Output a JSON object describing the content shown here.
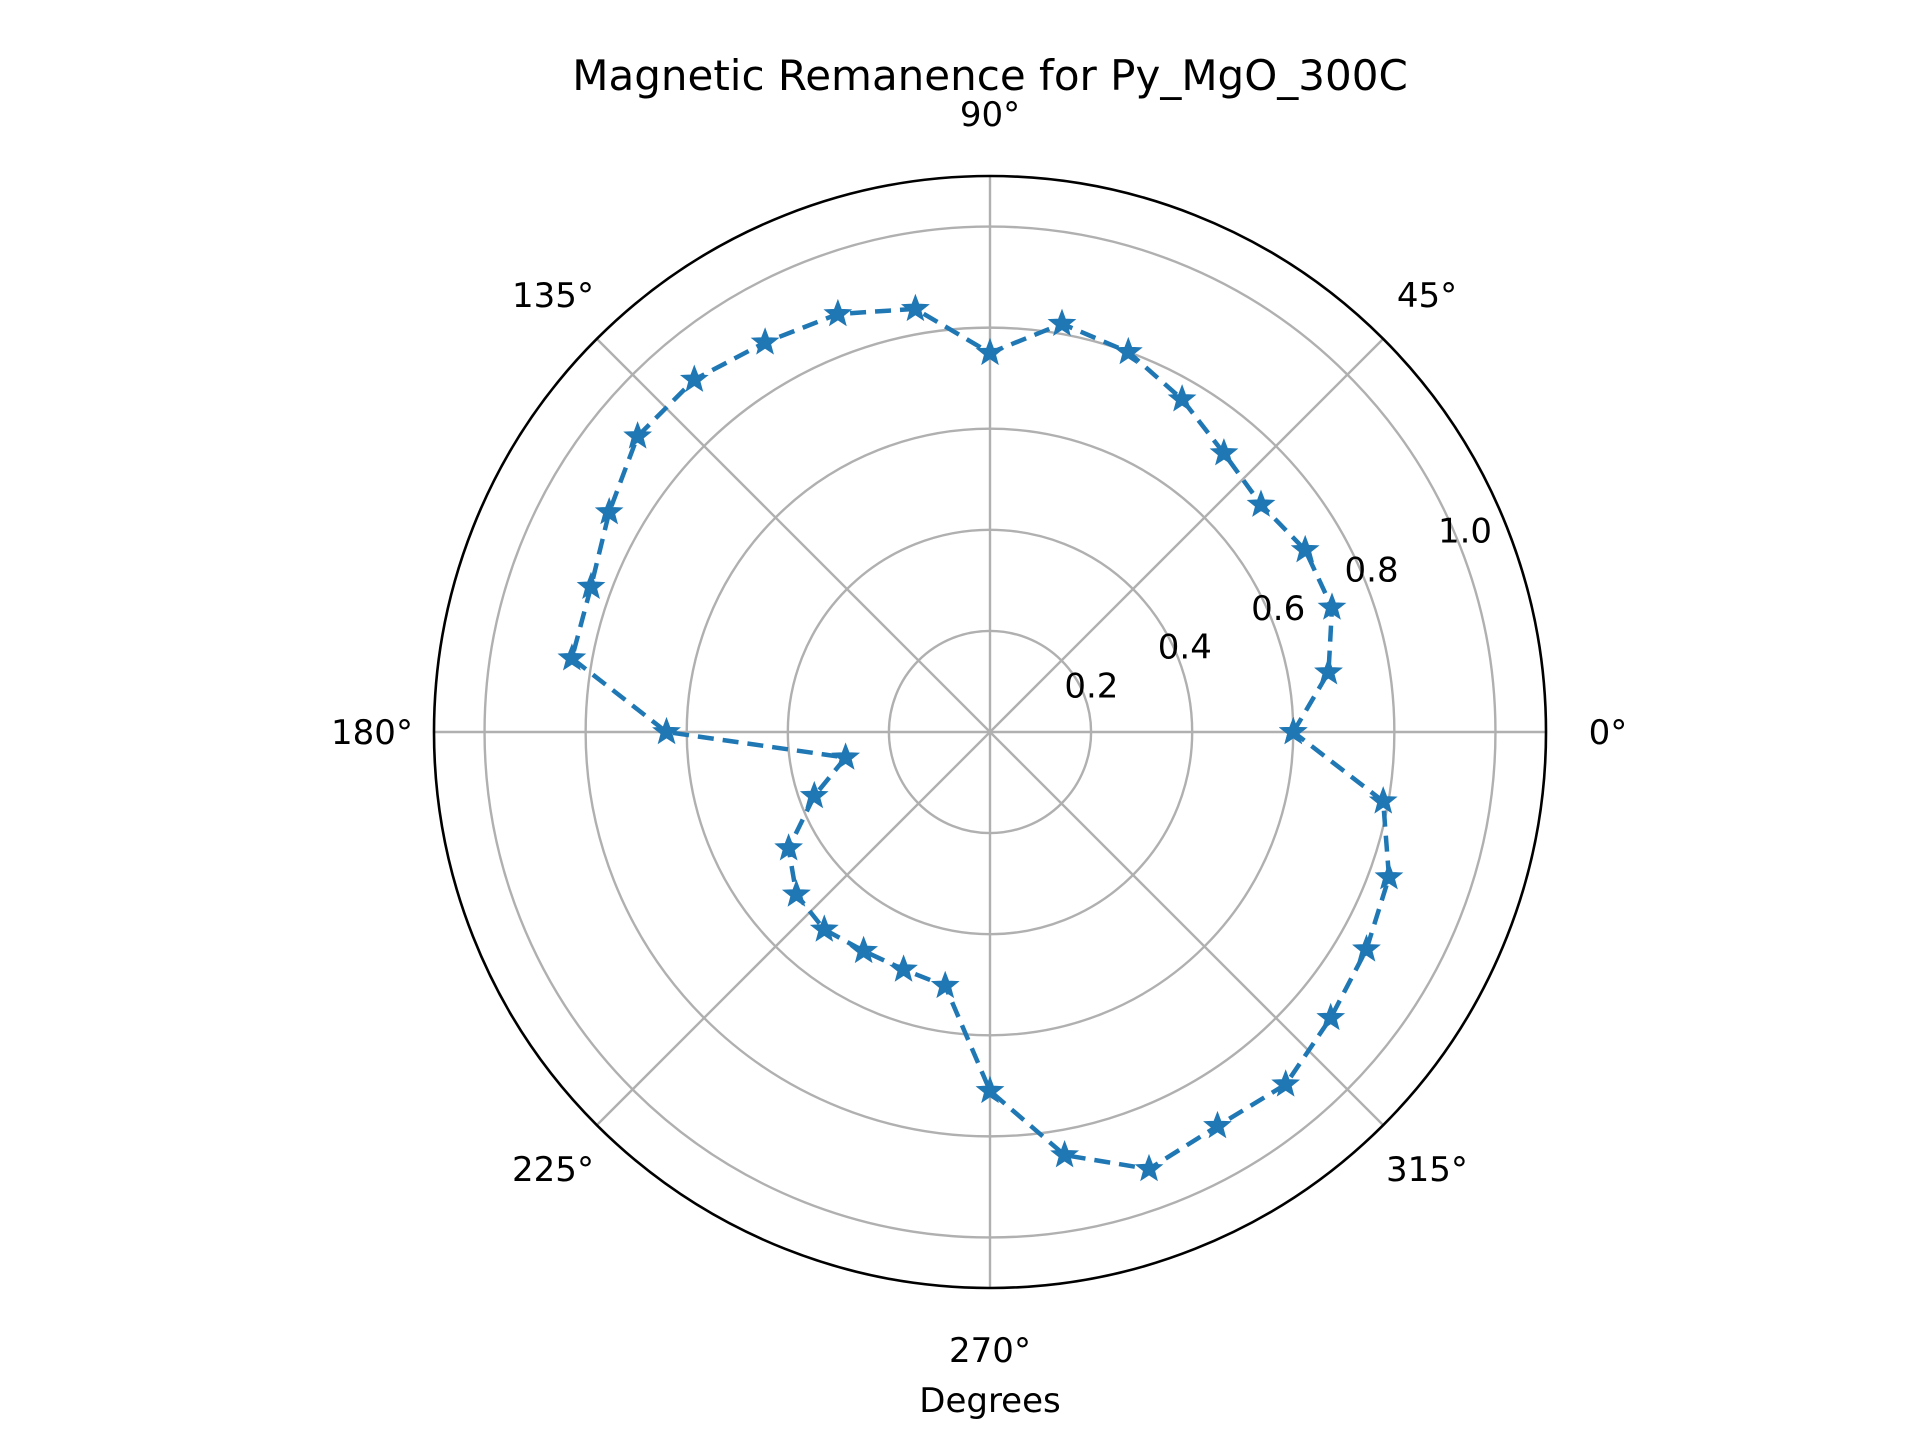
{
  "chart_data": {
    "type": "polar-line",
    "title": "Magnetic Remanence for Py_MgO_300C",
    "xlabel": "Degrees",
    "angle_ticks": [
      "0°",
      "45°",
      "90°",
      "135°",
      "180°",
      "225°",
      "270°",
      "315°"
    ],
    "radial_ticks": [
      "0.2",
      "0.4",
      "0.6",
      "0.8",
      "1.0"
    ],
    "rlim": [
      0,
      1.1
    ],
    "grid": true,
    "series": [
      {
        "color": "#1f77b4",
        "line_style": "dashed",
        "marker": "star",
        "theta_deg": [
          0,
          10,
          20,
          30,
          40,
          50,
          60,
          70,
          80,
          90,
          100,
          110,
          120,
          130,
          140,
          150,
          160,
          170,
          180,
          190,
          200,
          210,
          220,
          230,
          240,
          250,
          260,
          270,
          280,
          290,
          300,
          310,
          320,
          330,
          340,
          350,
          360
        ],
        "r": [
          0.6,
          0.68,
          0.72,
          0.72,
          0.7,
          0.72,
          0.76,
          0.8,
          0.82,
          0.75,
          0.85,
          0.88,
          0.89,
          0.91,
          0.91,
          0.87,
          0.84,
          0.84,
          0.64,
          0.29,
          0.37,
          0.46,
          0.5,
          0.51,
          0.5,
          0.5,
          0.51,
          0.71,
          0.85,
          0.92,
          0.9,
          0.91,
          0.88,
          0.86,
          0.84,
          0.79,
          0.6
        ]
      }
    ]
  }
}
